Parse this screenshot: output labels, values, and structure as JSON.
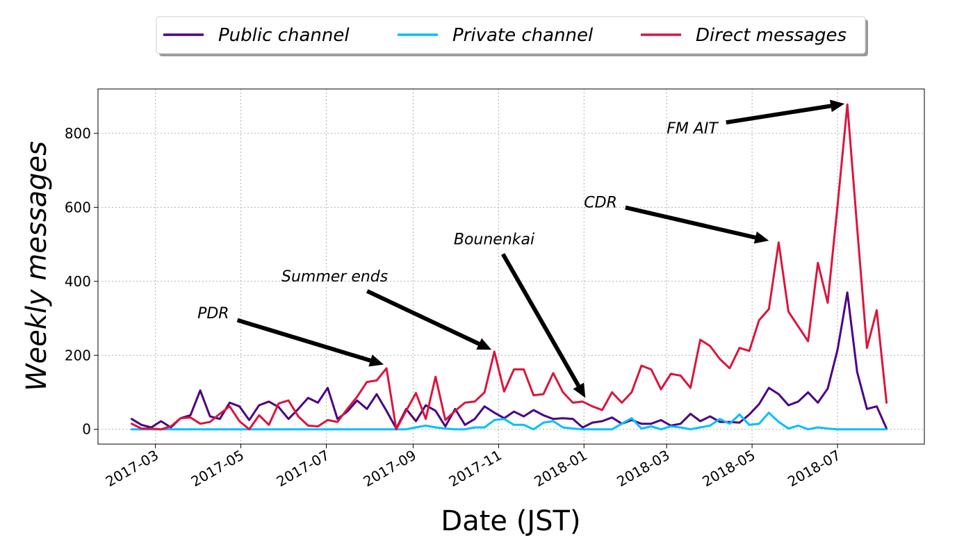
{
  "chart_data": {
    "type": "line",
    "xlabel": "Date (JST)",
    "ylabel": "Weekly messages",
    "xlim": [
      "2017-01-19",
      "2018-09-01"
    ],
    "ylim": [
      -40,
      920
    ],
    "grid": true,
    "legend_placement": "top-center",
    "x_tick_labels": [
      "2017-03",
      "2017-05",
      "2017-07",
      "2017-09",
      "2017-11",
      "2018-01",
      "2018-03",
      "2018-05",
      "2018-07"
    ],
    "x_ticks": [
      "2017-03-01",
      "2017-05-01",
      "2017-07-01",
      "2017-09-01",
      "2017-11-01",
      "2018-01-01",
      "2018-03-01",
      "2018-05-01",
      "2018-07-01"
    ],
    "y_ticks": [
      0,
      200,
      400,
      600,
      800
    ],
    "x": [
      "2017-02-12",
      "2017-02-19",
      "2017-02-26",
      "2017-03-05",
      "2017-03-12",
      "2017-03-19",
      "2017-03-26",
      "2017-04-02",
      "2017-04-09",
      "2017-04-16",
      "2017-04-23",
      "2017-04-30",
      "2017-05-07",
      "2017-05-14",
      "2017-05-21",
      "2017-05-28",
      "2017-06-04",
      "2017-06-11",
      "2017-06-18",
      "2017-06-25",
      "2017-07-02",
      "2017-07-09",
      "2017-07-16",
      "2017-07-23",
      "2017-07-30",
      "2017-08-06",
      "2017-08-13",
      "2017-08-20",
      "2017-08-27",
      "2017-09-03",
      "2017-09-10",
      "2017-09-17",
      "2017-09-24",
      "2017-10-01",
      "2017-10-08",
      "2017-10-15",
      "2017-10-22",
      "2017-10-29",
      "2017-11-05",
      "2017-11-12",
      "2017-11-19",
      "2017-11-26",
      "2017-12-03",
      "2017-12-10",
      "2017-12-17",
      "2017-12-24",
      "2017-12-31",
      "2018-01-07",
      "2018-01-14",
      "2018-01-21",
      "2018-01-28",
      "2018-02-04",
      "2018-02-11",
      "2018-02-18",
      "2018-02-25",
      "2018-03-04",
      "2018-03-11",
      "2018-03-18",
      "2018-03-25",
      "2018-04-01",
      "2018-04-08",
      "2018-04-15",
      "2018-04-22",
      "2018-04-29",
      "2018-05-06",
      "2018-05-13",
      "2018-05-20",
      "2018-05-27",
      "2018-06-03",
      "2018-06-10",
      "2018-06-17",
      "2018-06-24",
      "2018-07-01",
      "2018-07-08",
      "2018-07-15",
      "2018-07-22",
      "2018-07-29",
      "2018-08-05"
    ],
    "series": [
      {
        "name": "Public channel",
        "color": "#4b0082",
        "values": [
          28,
          12,
          5,
          22,
          5,
          30,
          38,
          105,
          35,
          28,
          72,
          62,
          25,
          65,
          75,
          60,
          28,
          55,
          85,
          72,
          112,
          28,
          48,
          78,
          55,
          95,
          50,
          2,
          55,
          22,
          65,
          50,
          8,
          55,
          12,
          28,
          62,
          45,
          30,
          48,
          35,
          52,
          38,
          28,
          30,
          28,
          5,
          18,
          22,
          32,
          15,
          25,
          15,
          15,
          25,
          10,
          15,
          42,
          22,
          35,
          20,
          20,
          18,
          40,
          68,
          112,
          95,
          65,
          75,
          100,
          72,
          110,
          215,
          370,
          155,
          55,
          62,
          2
        ]
      },
      {
        "name": "Private channel",
        "color": "#00bfff",
        "values": [
          0,
          0,
          0,
          0,
          0,
          0,
          0,
          0,
          0,
          0,
          0,
          0,
          0,
          0,
          0,
          0,
          0,
          0,
          0,
          0,
          0,
          0,
          0,
          0,
          0,
          0,
          0,
          0,
          0,
          5,
          10,
          5,
          2,
          0,
          0,
          5,
          5,
          25,
          28,
          12,
          12,
          0,
          18,
          22,
          5,
          2,
          0,
          0,
          0,
          0,
          15,
          30,
          2,
          8,
          0,
          8,
          5,
          0,
          5,
          10,
          28,
          15,
          40,
          12,
          15,
          45,
          20,
          2,
          10,
          0,
          5,
          2,
          0,
          0,
          0,
          0,
          0,
          0
        ]
      },
      {
        "name": "Direct messages",
        "color": "#dc143c",
        "values": [
          15,
          2,
          2,
          0,
          8,
          30,
          32,
          15,
          20,
          42,
          62,
          22,
          0,
          38,
          12,
          70,
          78,
          35,
          10,
          8,
          25,
          20,
          55,
          88,
          128,
          132,
          165,
          0,
          50,
          98,
          28,
          142,
          25,
          50,
          72,
          75,
          100,
          210,
          102,
          162,
          162,
          92,
          95,
          152,
          100,
          72,
          75,
          62,
          52,
          100,
          72,
          100,
          172,
          162,
          108,
          150,
          145,
          112,
          242,
          225,
          190,
          165,
          220,
          212,
          295,
          325,
          505,
          318,
          278,
          238,
          450,
          342,
          605,
          878,
          545,
          220,
          322,
          72
        ]
      }
    ],
    "annotations": [
      {
        "text": "PDR",
        "text_pos": [
          "2017-03-31",
          300
        ],
        "arrow_to": [
          "2017-08-11",
          175
        ]
      },
      {
        "text": "Summer ends",
        "text_pos": [
          "2017-05-30",
          400
        ],
        "arrow_to": [
          "2017-10-27",
          215
        ]
      },
      {
        "text": "Bounenkai",
        "text_pos": [
          "2017-09-30",
          500
        ],
        "arrow_to": [
          "2018-01-02",
          85
        ]
      },
      {
        "text": "CDR",
        "text_pos": [
          "2018-01-01",
          600
        ],
        "arrow_to": [
          "2018-05-13",
          510
        ]
      },
      {
        "text": "FM AIT",
        "text_pos": [
          "2018-03-01",
          800
        ],
        "arrow_to": [
          "2018-07-06",
          880
        ]
      }
    ]
  }
}
